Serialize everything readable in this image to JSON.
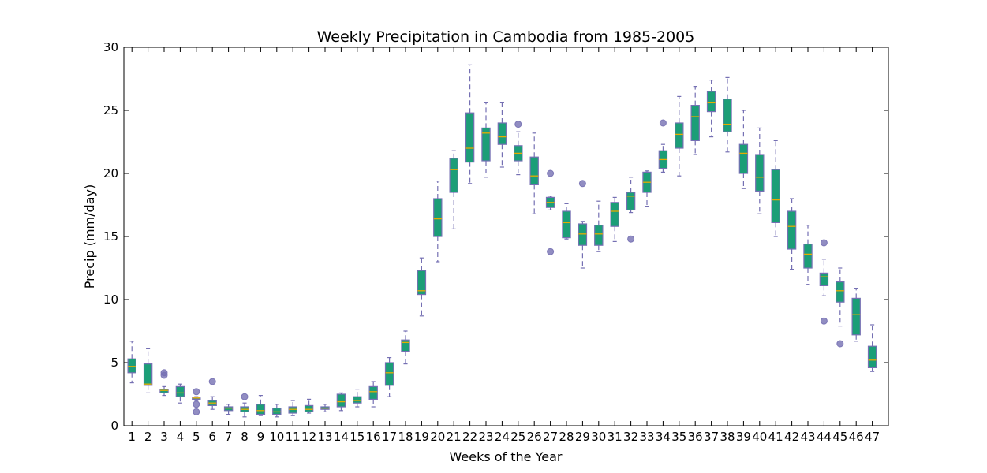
{
  "chart_data": {
    "type": "box",
    "title": "Weekly Precipitation in Cambodia from 1985-2005",
    "xlabel": "Weeks of the Year",
    "ylabel": "Precip (mm/day)",
    "ylim": [
      0,
      30
    ],
    "yticks": [
      0,
      5,
      10,
      15,
      20,
      25,
      30
    ],
    "grid": false,
    "colors": {
      "box_fill": "#1b9e77",
      "box_edge": "#7570b3",
      "median": "#e6ab02",
      "whisker": "#7570b3",
      "outlier": "#7570b3"
    },
    "categories": [
      "1",
      "2",
      "3",
      "4",
      "5",
      "6",
      "7",
      "8",
      "9",
      "10",
      "11",
      "12",
      "13",
      "14",
      "15",
      "16",
      "17",
      "18",
      "19",
      "20",
      "21",
      "22",
      "23",
      "24",
      "25",
      "26",
      "27",
      "28",
      "29",
      "30",
      "31",
      "32",
      "33",
      "34",
      "35",
      "36",
      "37",
      "38",
      "39",
      "40",
      "41",
      "42",
      "43",
      "44",
      "45",
      "46",
      "47"
    ],
    "boxes": [
      {
        "week": "1",
        "whislo": 3.4,
        "q1": 4.2,
        "med": 4.7,
        "q3": 5.3,
        "whishi": 6.7,
        "fliers": []
      },
      {
        "week": "2",
        "whislo": 2.6,
        "q1": 3.2,
        "med": 3.3,
        "q3": 4.9,
        "whishi": 6.1,
        "fliers": []
      },
      {
        "week": "3",
        "whislo": 2.4,
        "q1": 2.6,
        "med": 2.8,
        "q3": 2.9,
        "whishi": 3.1,
        "fliers": [
          4.0,
          4.2
        ]
      },
      {
        "week": "4",
        "whislo": 1.8,
        "q1": 2.3,
        "med": 2.6,
        "q3": 3.1,
        "whishi": 3.3,
        "fliers": []
      },
      {
        "week": "5",
        "whislo": 2.0,
        "q1": 2.1,
        "med": 2.2,
        "q3": 2.2,
        "whishi": 2.3,
        "fliers": [
          2.7,
          1.7,
          1.1
        ]
      },
      {
        "week": "6",
        "whislo": 1.3,
        "q1": 1.6,
        "med": 1.8,
        "q3": 2.0,
        "whishi": 2.3,
        "fliers": [
          3.5
        ]
      },
      {
        "week": "7",
        "whislo": 0.9,
        "q1": 1.2,
        "med": 1.4,
        "q3": 1.5,
        "whishi": 1.7,
        "fliers": []
      },
      {
        "week": "8",
        "whislo": 0.7,
        "q1": 1.1,
        "med": 1.3,
        "q3": 1.5,
        "whishi": 1.8,
        "fliers": [
          2.3
        ]
      },
      {
        "week": "9",
        "whislo": 0.8,
        "q1": 0.9,
        "med": 1.2,
        "q3": 1.7,
        "whishi": 2.4,
        "fliers": []
      },
      {
        "week": "10",
        "whislo": 0.7,
        "q1": 0.9,
        "med": 1.1,
        "q3": 1.4,
        "whishi": 1.7,
        "fliers": []
      },
      {
        "week": "11",
        "whislo": 0.8,
        "q1": 1.0,
        "med": 1.3,
        "q3": 1.5,
        "whishi": 2.0,
        "fliers": []
      },
      {
        "week": "12",
        "whislo": 1.0,
        "q1": 1.1,
        "med": 1.3,
        "q3": 1.6,
        "whishi": 2.1,
        "fliers": []
      },
      {
        "week": "13",
        "whislo": 1.1,
        "q1": 1.3,
        "med": 1.4,
        "q3": 1.5,
        "whishi": 1.7,
        "fliers": []
      },
      {
        "week": "14",
        "whislo": 1.2,
        "q1": 1.5,
        "med": 1.9,
        "q3": 2.5,
        "whishi": 2.6,
        "fliers": []
      },
      {
        "week": "15",
        "whislo": 1.5,
        "q1": 1.8,
        "med": 2.0,
        "q3": 2.3,
        "whishi": 2.9,
        "fliers": []
      },
      {
        "week": "16",
        "whislo": 1.5,
        "q1": 2.1,
        "med": 2.7,
        "q3": 3.1,
        "whishi": 3.5,
        "fliers": []
      },
      {
        "week": "17",
        "whislo": 2.3,
        "q1": 3.2,
        "med": 4.2,
        "q3": 5.0,
        "whishi": 5.4,
        "fliers": []
      },
      {
        "week": "18",
        "whislo": 4.9,
        "q1": 5.9,
        "med": 6.6,
        "q3": 6.8,
        "whishi": 7.5,
        "fliers": []
      },
      {
        "week": "19",
        "whislo": 8.7,
        "q1": 10.4,
        "med": 10.7,
        "q3": 12.3,
        "whishi": 13.3,
        "fliers": []
      },
      {
        "week": "20",
        "whislo": 13.0,
        "q1": 15.0,
        "med": 16.4,
        "q3": 18.0,
        "whishi": 19.4,
        "fliers": []
      },
      {
        "week": "21",
        "whislo": 15.6,
        "q1": 18.5,
        "med": 20.3,
        "q3": 21.2,
        "whishi": 21.8,
        "fliers": []
      },
      {
        "week": "22",
        "whislo": 19.2,
        "q1": 20.9,
        "med": 22.0,
        "q3": 24.8,
        "whishi": 28.6,
        "fliers": []
      },
      {
        "week": "23",
        "whislo": 19.7,
        "q1": 21.0,
        "med": 23.2,
        "q3": 23.6,
        "whishi": 25.6,
        "fliers": []
      },
      {
        "week": "24",
        "whislo": 20.5,
        "q1": 22.3,
        "med": 22.9,
        "q3": 24.0,
        "whishi": 25.6,
        "fliers": []
      },
      {
        "week": "25",
        "whislo": 19.9,
        "q1": 21.0,
        "med": 21.6,
        "q3": 22.2,
        "whishi": 23.3,
        "fliers": [
          23.9
        ]
      },
      {
        "week": "26",
        "whislo": 16.8,
        "q1": 19.1,
        "med": 19.8,
        "q3": 21.3,
        "whishi": 23.2,
        "fliers": []
      },
      {
        "week": "27",
        "whislo": 17.1,
        "q1": 17.3,
        "med": 17.7,
        "q3": 18.1,
        "whishi": 18.2,
        "fliers": [
          20.0,
          13.8
        ]
      },
      {
        "week": "28",
        "whislo": 14.8,
        "q1": 14.9,
        "med": 16.1,
        "q3": 17.0,
        "whishi": 17.6,
        "fliers": []
      },
      {
        "week": "29",
        "whislo": 12.5,
        "q1": 14.3,
        "med": 15.2,
        "q3": 16.0,
        "whishi": 16.2,
        "fliers": [
          19.2
        ]
      },
      {
        "week": "30",
        "whislo": 13.8,
        "q1": 14.3,
        "med": 15.2,
        "q3": 15.9,
        "whishi": 17.8,
        "fliers": []
      },
      {
        "week": "31",
        "whislo": 14.6,
        "q1": 15.8,
        "med": 17.0,
        "q3": 17.7,
        "whishi": 18.1,
        "fliers": []
      },
      {
        "week": "32",
        "whislo": 16.9,
        "q1": 17.1,
        "med": 18.2,
        "q3": 18.5,
        "whishi": 19.7,
        "fliers": [
          14.8
        ]
      },
      {
        "week": "33",
        "whislo": 17.4,
        "q1": 18.5,
        "med": 19.3,
        "q3": 20.1,
        "whishi": 20.2,
        "fliers": []
      },
      {
        "week": "34",
        "whislo": 20.1,
        "q1": 20.4,
        "med": 21.1,
        "q3": 21.8,
        "whishi": 22.3,
        "fliers": [
          24.0
        ]
      },
      {
        "week": "35",
        "whislo": 19.8,
        "q1": 22.0,
        "med": 23.1,
        "q3": 24.0,
        "whishi": 26.1,
        "fliers": []
      },
      {
        "week": "36",
        "whislo": 21.5,
        "q1": 22.6,
        "med": 24.5,
        "q3": 25.4,
        "whishi": 26.9,
        "fliers": []
      },
      {
        "week": "37",
        "whislo": 22.9,
        "q1": 24.9,
        "med": 25.6,
        "q3": 26.5,
        "whishi": 27.4,
        "fliers": []
      },
      {
        "week": "38",
        "whislo": 21.7,
        "q1": 23.3,
        "med": 23.9,
        "q3": 25.9,
        "whishi": 27.6,
        "fliers": []
      },
      {
        "week": "39",
        "whislo": 18.8,
        "q1": 20.0,
        "med": 21.6,
        "q3": 22.3,
        "whishi": 25.0,
        "fliers": []
      },
      {
        "week": "40",
        "whislo": 16.8,
        "q1": 18.6,
        "med": 19.7,
        "q3": 21.5,
        "whishi": 23.6,
        "fliers": []
      },
      {
        "week": "41",
        "whislo": 15.0,
        "q1": 16.1,
        "med": 17.9,
        "q3": 20.3,
        "whishi": 22.6,
        "fliers": []
      },
      {
        "week": "42",
        "whislo": 12.4,
        "q1": 14.0,
        "med": 15.8,
        "q3": 17.0,
        "whishi": 18.0,
        "fliers": []
      },
      {
        "week": "43",
        "whislo": 11.2,
        "q1": 12.5,
        "med": 13.6,
        "q3": 14.4,
        "whishi": 15.9,
        "fliers": []
      },
      {
        "week": "44",
        "whislo": 10.3,
        "q1": 11.1,
        "med": 11.8,
        "q3": 12.1,
        "whishi": 13.2,
        "fliers": [
          14.5,
          8.3
        ]
      },
      {
        "week": "45",
        "whislo": 7.9,
        "q1": 9.8,
        "med": 10.7,
        "q3": 11.4,
        "whishi": 12.5,
        "fliers": [
          6.5
        ]
      },
      {
        "week": "46",
        "whislo": 6.7,
        "q1": 7.2,
        "med": 8.8,
        "q3": 10.1,
        "whishi": 10.9,
        "fliers": []
      },
      {
        "week": "47",
        "whislo": 4.3,
        "q1": 4.6,
        "med": 5.2,
        "q3": 6.3,
        "whishi": 8.0,
        "fliers": []
      }
    ]
  }
}
